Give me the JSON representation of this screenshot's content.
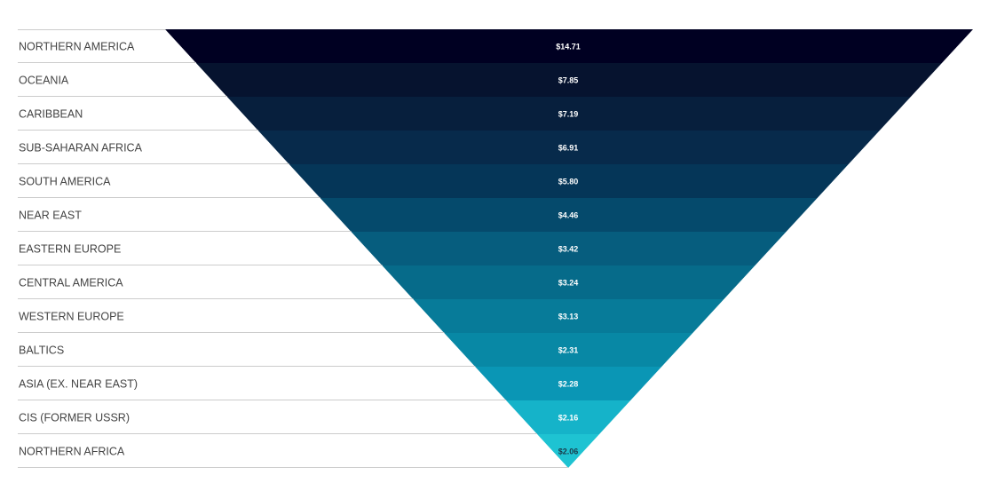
{
  "chart_data": {
    "type": "funnel",
    "orientation": "inverted",
    "categories": [
      "NORTHERN AMERICA",
      "OCEANIA",
      "CARIBBEAN",
      "SUB-SAHARAN AFRICA",
      "SOUTH AMERICA",
      "NEAR EAST",
      "EASTERN EUROPE",
      "CENTRAL AMERICA",
      "WESTERN EUROPE",
      "BALTICS",
      "ASIA (EX. NEAR EAST)",
      "CIS (FORMER USSR)",
      "NORTHERN AFRICA"
    ],
    "values": [
      14.71,
      7.85,
      7.19,
      6.91,
      5.8,
      4.46,
      3.42,
      3.24,
      3.13,
      2.31,
      2.28,
      2.16,
      2.06
    ],
    "value_labels": [
      "$14.71",
      "$7.85",
      "$7.19",
      "$6.91",
      "$5.80",
      "$4.46",
      "$3.42",
      "$3.24",
      "$3.13",
      "$2.31",
      "$2.28",
      "$2.16",
      "$2.06"
    ],
    "colors": [
      "#000022",
      "#06132f",
      "#071f3d",
      "#072a4b",
      "#053658",
      "#054a6c",
      "#065d7e",
      "#066b8a",
      "#077b99",
      "#0888a5",
      "#0a96b5",
      "#15b3c9",
      "#1ec3d2"
    ],
    "label_colors": [
      "#ffffff",
      "#ffffff",
      "#ffffff",
      "#ffffff",
      "#ffffff",
      "#ffffff",
      "#ffffff",
      "#ffffff",
      "#ffffff",
      "#ffffff",
      "#ffffff",
      "#ffffff",
      "#1a3a4a"
    ],
    "separator_color": "#cccccc"
  }
}
